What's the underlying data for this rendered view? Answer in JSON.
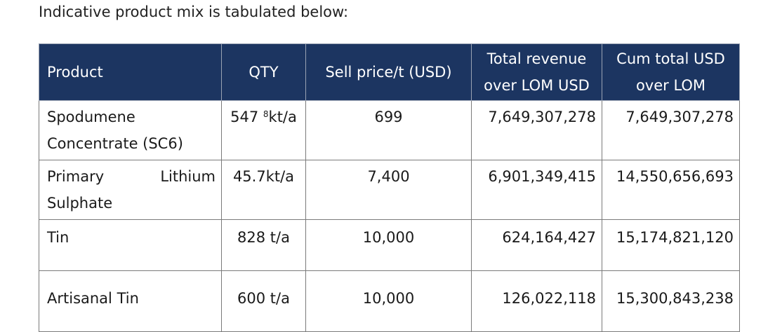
{
  "intro_text": "Indicative product mix is tabulated below:",
  "table": {
    "header_color": "#1c3561",
    "headers": {
      "product": "Product",
      "qty": "QTY",
      "sell_price": "Sell price/t (USD)",
      "total_revenue_line1": "Total revenue",
      "total_revenue_line2": "over LOM USD",
      "cum_total_line1": "Cum total USD",
      "cum_total_line2": "over LOM"
    },
    "rows": [
      {
        "product_line1": "Spodumene",
        "product_line2": "Concentrate (SC6)",
        "qty_value": "547 ",
        "qty_footnote": "8",
        "qty_unit": "kt/a",
        "sell_price": "699",
        "total_revenue": "7,649,307,278",
        "cum_total": "7,649,307,278"
      },
      {
        "product_line1_a": "Primary",
        "product_line1_b": "Lithium",
        "product_line2": "Sulphate",
        "qty": "45.7kt/a",
        "sell_price": "7,400",
        "total_revenue": "6,901,349,415",
        "cum_total": "14,550,656,693"
      },
      {
        "product": "Tin",
        "qty": "828 t/a",
        "sell_price": "10,000",
        "total_revenue": "624,164,427",
        "cum_total": "15,174,821,120"
      },
      {
        "product": "Artisanal Tin",
        "qty": "600 t/a",
        "sell_price": "10,000",
        "total_revenue": "126,022,118",
        "cum_total": "15,300,843,238"
      }
    ]
  }
}
